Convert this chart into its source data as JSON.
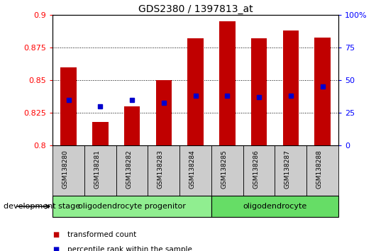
{
  "title": "GDS2380 / 1397813_at",
  "samples": [
    "GSM138280",
    "GSM138281",
    "GSM138282",
    "GSM138283",
    "GSM138284",
    "GSM138285",
    "GSM138286",
    "GSM138287",
    "GSM138288"
  ],
  "transformed_count": [
    0.86,
    0.818,
    0.83,
    0.85,
    0.882,
    0.895,
    0.882,
    0.888,
    0.883
  ],
  "percentile_rank_left": [
    0.835,
    0.83,
    0.835,
    0.833,
    0.838,
    0.838,
    0.837,
    0.838,
    0.845
  ],
  "ylim_left": [
    0.8,
    0.9
  ],
  "ylim_right": [
    0,
    100
  ],
  "yticks_left": [
    0.8,
    0.825,
    0.85,
    0.875,
    0.9
  ],
  "yticks_right": [
    0,
    25,
    50,
    75,
    100
  ],
  "bar_color": "#c00000",
  "dot_color": "#0000cc",
  "groups": [
    {
      "label": "oligodendrocyte progenitor",
      "start": 0,
      "end": 4,
      "color": "#90ee90"
    },
    {
      "label": "oligodendrocyte",
      "start": 5,
      "end": 8,
      "color": "#66dd66"
    }
  ],
  "dev_stage_label": "development stage",
  "tick_bg_color": "#cccccc",
  "bar_width": 0.5
}
